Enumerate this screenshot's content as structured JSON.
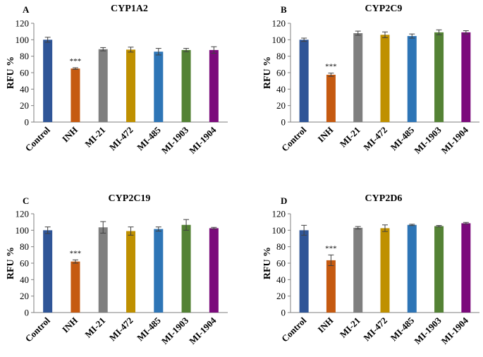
{
  "chart_data": [
    {
      "type": "bar",
      "panel_letter": "A",
      "title": "CYP1A2",
      "xlabel": "",
      "ylabel": "RFU %",
      "ylim": [
        0,
        120
      ],
      "yticks": [
        0,
        20,
        40,
        60,
        80,
        100,
        120
      ],
      "categories": [
        "Control",
        "INH",
        "MI-21",
        "MI-472",
        "MI-485",
        "MI-1903",
        "MI-1904"
      ],
      "values": [
        100,
        65,
        88.5,
        88,
        85.5,
        87.5,
        87.5
      ],
      "errors": [
        3,
        1,
        2,
        3,
        4,
        2,
        4
      ],
      "annotations": [
        {
          "category": "INH",
          "text": "***"
        }
      ],
      "colors": [
        "#2f5597",
        "#c55a11",
        "#7f7f7f",
        "#bf9000",
        "#2e75b6",
        "#548235",
        "#7b0a7b"
      ]
    },
    {
      "type": "bar",
      "panel_letter": "B",
      "title": "CYP2C9",
      "xlabel": "",
      "ylabel": "RFU %",
      "ylim": [
        0,
        120
      ],
      "yticks": [
        0,
        20,
        40,
        60,
        80,
        100,
        120
      ],
      "categories": [
        "Control",
        "INH",
        "MI-21",
        "MI-472",
        "MI-485",
        "MI-1903",
        "MI-1904"
      ],
      "values": [
        100,
        57.5,
        108,
        106,
        104.5,
        109,
        109
      ],
      "errors": [
        2,
        2,
        2.5,
        3.5,
        2.5,
        3,
        2
      ],
      "annotations": [
        {
          "category": "INH",
          "text": "***"
        }
      ],
      "colors": [
        "#2f5597",
        "#c55a11",
        "#7f7f7f",
        "#bf9000",
        "#2e75b6",
        "#548235",
        "#7b0a7b"
      ]
    },
    {
      "type": "bar",
      "panel_letter": "C",
      "title": "CYP2C19",
      "xlabel": "",
      "ylabel": "RFU %",
      "ylim": [
        0,
        120
      ],
      "yticks": [
        0,
        20,
        40,
        60,
        80,
        100,
        120
      ],
      "categories": [
        "Control",
        "INH",
        "MI-21",
        "MI-472",
        "MI-485",
        "MI-1903",
        "MI-1904"
      ],
      "values": [
        100,
        62,
        103.5,
        99,
        101.5,
        106.5,
        102.5
      ],
      "errors": [
        4,
        2,
        7,
        5,
        2.5,
        6.5,
        1
      ],
      "annotations": [
        {
          "category": "INH",
          "text": "***"
        }
      ],
      "colors": [
        "#2f5597",
        "#c55a11",
        "#7f7f7f",
        "#bf9000",
        "#2e75b6",
        "#548235",
        "#7b0a7b"
      ]
    },
    {
      "type": "bar",
      "panel_letter": "D",
      "title": "CYP2D6",
      "xlabel": "",
      "ylabel": "RFU %",
      "ylim": [
        0,
        120
      ],
      "yticks": [
        0,
        20,
        40,
        60,
        80,
        100,
        120
      ],
      "categories": [
        "Control",
        "INH",
        "MI-21",
        "MI-472",
        "MI-485",
        "MI-1903",
        "MI-1904"
      ],
      "values": [
        100,
        63.5,
        103,
        102.5,
        106.5,
        105,
        108.5
      ],
      "errors": [
        6,
        6.5,
        1.5,
        4,
        0.8,
        0.8,
        1
      ],
      "annotations": [
        {
          "category": "INH",
          "text": "***"
        }
      ],
      "colors": [
        "#2f5597",
        "#c55a11",
        "#7f7f7f",
        "#bf9000",
        "#2e75b6",
        "#548235",
        "#7b0a7b"
      ]
    }
  ]
}
